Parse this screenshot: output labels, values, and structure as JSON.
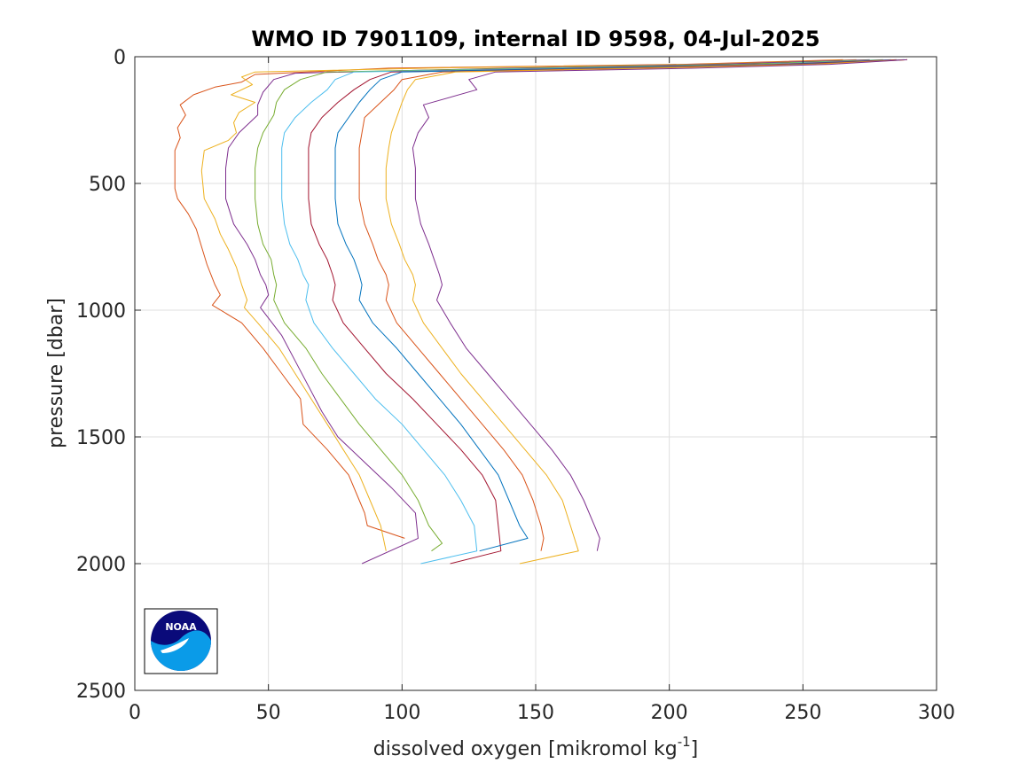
{
  "chart_data": {
    "type": "line",
    "title": "WMO ID 7901109, internal ID 9598, 04-Jul-2025",
    "xlabel": {
      "main": "dissolved oxygen [mikromol kg",
      "sup": "-1",
      "tail": "]"
    },
    "ylabel": "pressure [dbar]",
    "xlim": [
      0,
      300
    ],
    "ylim": [
      0,
      2500
    ],
    "y_reversed": true,
    "grid": true,
    "xticks": [
      0,
      50,
      100,
      150,
      200,
      250,
      300
    ],
    "yticks": [
      0,
      500,
      1000,
      1500,
      2000,
      2500
    ],
    "logo": {
      "name": "noaa-logo",
      "text": "NOAA",
      "colors": {
        "navy": "#0a0a7a",
        "sky": "#0a9be8"
      }
    },
    "series": [
      {
        "color": "#d95319",
        "points": [
          [
            265,
            12
          ],
          [
            205,
            30
          ],
          [
            95,
            45
          ],
          [
            45,
            70
          ],
          [
            40,
            100
          ],
          [
            30,
            120
          ],
          [
            22,
            150
          ],
          [
            17,
            190
          ],
          [
            19,
            230
          ],
          [
            16,
            280
          ],
          [
            17,
            320
          ],
          [
            15,
            370
          ],
          [
            15,
            440
          ],
          [
            15,
            520
          ],
          [
            16,
            560
          ],
          [
            20,
            620
          ],
          [
            23,
            680
          ],
          [
            25,
            750
          ],
          [
            27,
            820
          ],
          [
            30,
            900
          ],
          [
            32,
            940
          ],
          [
            29,
            980
          ],
          [
            40,
            1050
          ],
          [
            48,
            1150
          ],
          [
            55,
            1250
          ],
          [
            62,
            1350
          ],
          [
            63,
            1450
          ],
          [
            72,
            1550
          ],
          [
            80,
            1650
          ],
          [
            84,
            1750
          ],
          [
            86,
            1800
          ],
          [
            87,
            1850
          ],
          [
            101,
            1900
          ]
        ]
      },
      {
        "color": "#edb120",
        "points": [
          [
            270,
            12
          ],
          [
            210,
            30
          ],
          [
            110,
            45
          ],
          [
            45,
            60
          ],
          [
            40,
            80
          ],
          [
            44,
            110
          ],
          [
            36,
            150
          ],
          [
            45,
            180
          ],
          [
            39,
            220
          ],
          [
            37,
            260
          ],
          [
            38,
            300
          ],
          [
            35,
            330
          ],
          [
            26,
            370
          ],
          [
            25,
            450
          ],
          [
            26,
            560
          ],
          [
            30,
            640
          ],
          [
            32,
            700
          ],
          [
            35,
            760
          ],
          [
            38,
            830
          ],
          [
            40,
            900
          ],
          [
            42,
            960
          ],
          [
            41,
            990
          ],
          [
            46,
            1050
          ],
          [
            54,
            1150
          ],
          [
            60,
            1250
          ],
          [
            66,
            1350
          ],
          [
            72,
            1450
          ],
          [
            78,
            1550
          ],
          [
            84,
            1650
          ],
          [
            88,
            1750
          ],
          [
            92,
            1850
          ],
          [
            94,
            1950
          ]
        ]
      },
      {
        "color": "#7e2f8e",
        "points": [
          [
            275,
            12
          ],
          [
            215,
            30
          ],
          [
            140,
            45
          ],
          [
            60,
            65
          ],
          [
            52,
            90
          ],
          [
            48,
            140
          ],
          [
            46,
            190
          ],
          [
            46,
            230
          ],
          [
            39,
            300
          ],
          [
            35,
            360
          ],
          [
            34,
            440
          ],
          [
            34,
            560
          ],
          [
            37,
            660
          ],
          [
            42,
            740
          ],
          [
            45,
            800
          ],
          [
            47,
            860
          ],
          [
            49,
            900
          ],
          [
            50,
            940
          ],
          [
            47,
            990
          ],
          [
            55,
            1100
          ],
          [
            60,
            1200
          ],
          [
            65,
            1300
          ],
          [
            70,
            1400
          ],
          [
            76,
            1500
          ],
          [
            86,
            1600
          ],
          [
            96,
            1700
          ],
          [
            105,
            1800
          ],
          [
            106,
            1900
          ],
          [
            85,
            2000
          ]
        ]
      },
      {
        "color": "#77ac30",
        "points": [
          [
            280,
            12
          ],
          [
            225,
            30
          ],
          [
            150,
            45
          ],
          [
            72,
            60
          ],
          [
            62,
            90
          ],
          [
            56,
            130
          ],
          [
            53,
            180
          ],
          [
            52,
            230
          ],
          [
            48,
            300
          ],
          [
            46,
            360
          ],
          [
            45,
            440
          ],
          [
            45,
            560
          ],
          [
            46,
            660
          ],
          [
            48,
            740
          ],
          [
            51,
            800
          ],
          [
            52,
            860
          ],
          [
            53,
            900
          ],
          [
            52,
            960
          ],
          [
            56,
            1050
          ],
          [
            64,
            1150
          ],
          [
            70,
            1250
          ],
          [
            77,
            1350
          ],
          [
            84,
            1450
          ],
          [
            92,
            1550
          ],
          [
            100,
            1650
          ],
          [
            106,
            1750
          ],
          [
            110,
            1850
          ],
          [
            115,
            1920
          ],
          [
            111,
            1950
          ]
        ]
      },
      {
        "color": "#4dbeee",
        "points": [
          [
            283,
            12
          ],
          [
            235,
            30
          ],
          [
            160,
            45
          ],
          [
            82,
            60
          ],
          [
            75,
            90
          ],
          [
            72,
            130
          ],
          [
            66,
            180
          ],
          [
            60,
            240
          ],
          [
            56,
            300
          ],
          [
            55,
            360
          ],
          [
            55,
            440
          ],
          [
            55,
            560
          ],
          [
            56,
            660
          ],
          [
            58,
            740
          ],
          [
            61,
            800
          ],
          [
            63,
            860
          ],
          [
            65,
            900
          ],
          [
            64,
            960
          ],
          [
            67,
            1050
          ],
          [
            74,
            1150
          ],
          [
            82,
            1250
          ],
          [
            90,
            1350
          ],
          [
            100,
            1450
          ],
          [
            108,
            1550
          ],
          [
            116,
            1650
          ],
          [
            122,
            1750
          ],
          [
            127,
            1850
          ],
          [
            128,
            1950
          ],
          [
            107,
            2000
          ]
        ]
      },
      {
        "color": "#a2142f",
        "points": [
          [
            285,
            12
          ],
          [
            240,
            30
          ],
          [
            170,
            45
          ],
          [
            96,
            60
          ],
          [
            88,
            90
          ],
          [
            82,
            130
          ],
          [
            76,
            180
          ],
          [
            70,
            240
          ],
          [
            66,
            300
          ],
          [
            65,
            360
          ],
          [
            65,
            440
          ],
          [
            65,
            560
          ],
          [
            66,
            660
          ],
          [
            69,
            740
          ],
          [
            72,
            800
          ],
          [
            74,
            860
          ],
          [
            75,
            900
          ],
          [
            74,
            960
          ],
          [
            78,
            1050
          ],
          [
            86,
            1150
          ],
          [
            94,
            1250
          ],
          [
            104,
            1350
          ],
          [
            113,
            1450
          ],
          [
            122,
            1550
          ],
          [
            130,
            1650
          ],
          [
            135,
            1750
          ],
          [
            136,
            1850
          ],
          [
            137,
            1950
          ],
          [
            118,
            2000
          ]
        ]
      },
      {
        "color": "#0072bd",
        "points": [
          [
            288,
            12
          ],
          [
            245,
            30
          ],
          [
            175,
            45
          ],
          [
            100,
            60
          ],
          [
            92,
            90
          ],
          [
            88,
            130
          ],
          [
            84,
            180
          ],
          [
            80,
            240
          ],
          [
            76,
            300
          ],
          [
            75,
            360
          ],
          [
            75,
            440
          ],
          [
            75,
            560
          ],
          [
            76,
            660
          ],
          [
            79,
            740
          ],
          [
            82,
            800
          ],
          [
            84,
            860
          ],
          [
            85,
            900
          ],
          [
            84,
            960
          ],
          [
            89,
            1050
          ],
          [
            98,
            1150
          ],
          [
            106,
            1250
          ],
          [
            114,
            1350
          ],
          [
            122,
            1450
          ],
          [
            129,
            1550
          ],
          [
            136,
            1650
          ],
          [
            140,
            1750
          ],
          [
            144,
            1850
          ],
          [
            147,
            1900
          ],
          [
            129,
            1950
          ]
        ]
      },
      {
        "color": "#d95319",
        "points": [
          [
            289,
            12
          ],
          [
            250,
            30
          ],
          [
            185,
            45
          ],
          [
            115,
            60
          ],
          [
            100,
            90
          ],
          [
            97,
            130
          ],
          [
            92,
            180
          ],
          [
            86,
            240
          ],
          [
            85,
            300
          ],
          [
            84,
            360
          ],
          [
            84,
            440
          ],
          [
            84,
            560
          ],
          [
            86,
            660
          ],
          [
            89,
            740
          ],
          [
            91,
            800
          ],
          [
            94,
            860
          ],
          [
            95,
            900
          ],
          [
            94,
            960
          ],
          [
            98,
            1050
          ],
          [
            106,
            1150
          ],
          [
            114,
            1250
          ],
          [
            122,
            1350
          ],
          [
            130,
            1450
          ],
          [
            138,
            1550
          ],
          [
            145,
            1650
          ],
          [
            149,
            1750
          ],
          [
            152,
            1850
          ],
          [
            153,
            1900
          ],
          [
            152,
            1950
          ]
        ]
      },
      {
        "color": "#edb120",
        "points": [
          [
            289,
            12
          ],
          [
            255,
            30
          ],
          [
            195,
            45
          ],
          [
            120,
            60
          ],
          [
            105,
            90
          ],
          [
            102,
            130
          ],
          [
            100,
            180
          ],
          [
            98,
            240
          ],
          [
            96,
            300
          ],
          [
            95,
            360
          ],
          [
            94,
            440
          ],
          [
            94,
            560
          ],
          [
            96,
            660
          ],
          [
            99,
            740
          ],
          [
            101,
            800
          ],
          [
            104,
            860
          ],
          [
            105,
            900
          ],
          [
            104,
            960
          ],
          [
            108,
            1050
          ],
          [
            115,
            1150
          ],
          [
            122,
            1250
          ],
          [
            130,
            1350
          ],
          [
            138,
            1450
          ],
          [
            146,
            1550
          ],
          [
            154,
            1650
          ],
          [
            160,
            1750
          ],
          [
            163,
            1850
          ],
          [
            166,
            1950
          ],
          [
            144,
            2000
          ]
        ]
      },
      {
        "color": "#7e2f8e",
        "points": [
          [
            289,
            12
          ],
          [
            260,
            30
          ],
          [
            210,
            45
          ],
          [
            135,
            60
          ],
          [
            125,
            90
          ],
          [
            128,
            130
          ],
          [
            108,
            190
          ],
          [
            110,
            240
          ],
          [
            106,
            300
          ],
          [
            104,
            360
          ],
          [
            105,
            440
          ],
          [
            105,
            560
          ],
          [
            107,
            660
          ],
          [
            110,
            740
          ],
          [
            112,
            800
          ],
          [
            114,
            860
          ],
          [
            115,
            900
          ],
          [
            113,
            960
          ],
          [
            118,
            1050
          ],
          [
            124,
            1150
          ],
          [
            132,
            1250
          ],
          [
            140,
            1350
          ],
          [
            148,
            1450
          ],
          [
            156,
            1550
          ],
          [
            163,
            1650
          ],
          [
            168,
            1750
          ],
          [
            172,
            1850
          ],
          [
            174,
            1900
          ],
          [
            173,
            1950
          ]
        ]
      }
    ]
  }
}
